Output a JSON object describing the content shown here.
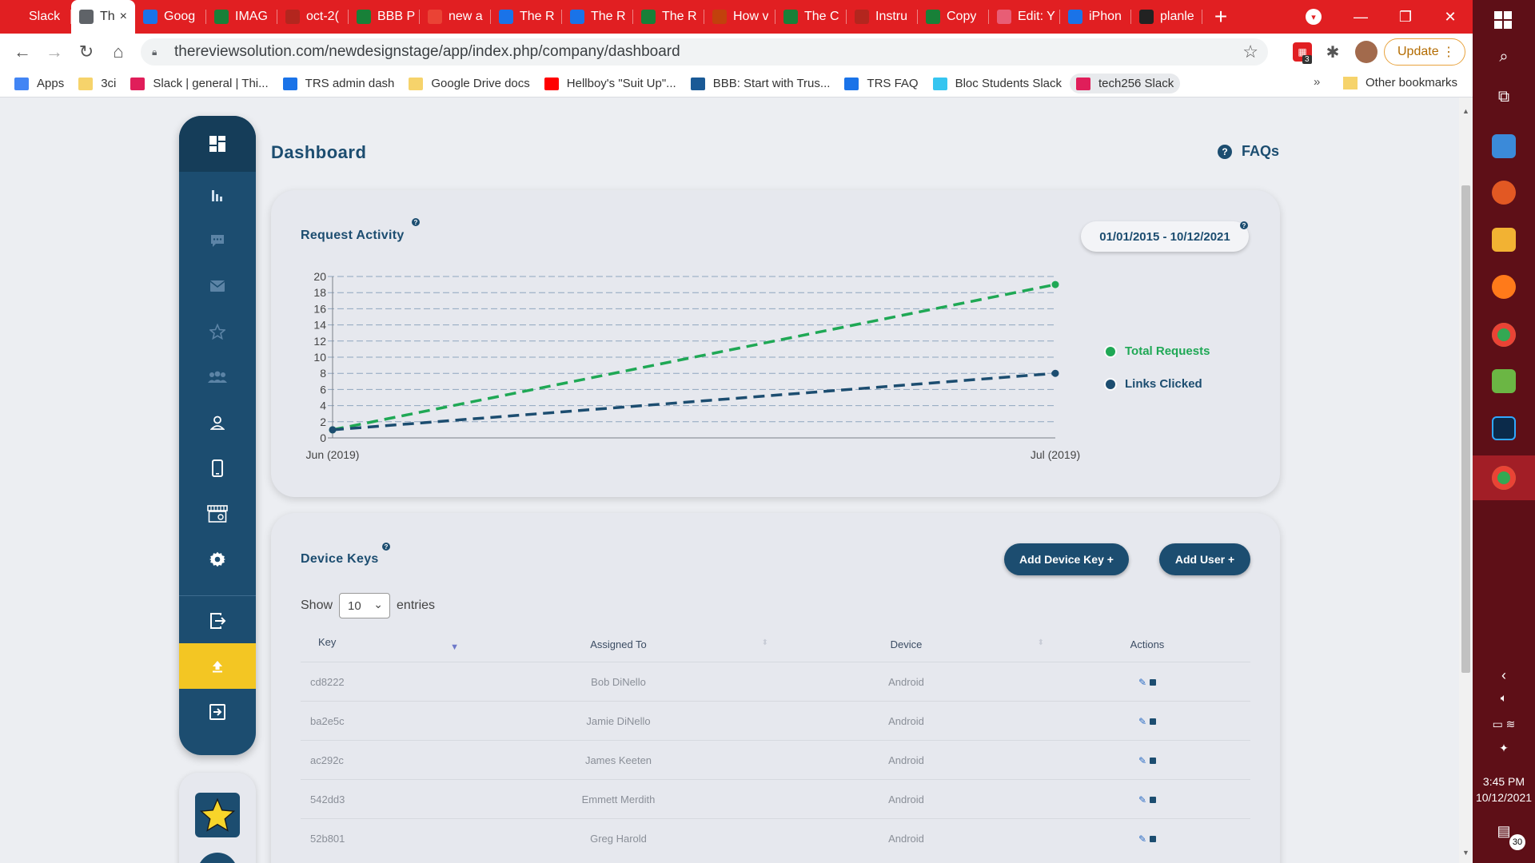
{
  "browser": {
    "tabs": [
      {
        "label": "Slack",
        "icon_color": "#e11f22",
        "icon_name": "slack-icon"
      },
      {
        "label": "Th",
        "icon_color": "#5f6368",
        "icon_name": "globe-icon",
        "active": true
      },
      {
        "label": "Goog",
        "icon_color": "#1a73e8",
        "icon_name": "sel-icon"
      },
      {
        "label": "IMAG",
        "icon_color": "#188038",
        "icon_name": "sheets-icon"
      },
      {
        "label": "oct-2(",
        "icon_color": "#b3261e",
        "icon_name": "web-icon"
      },
      {
        "label": "BBB P",
        "icon_color": "#188038",
        "icon_name": "sheets-icon"
      },
      {
        "label": "new a",
        "icon_color": "#ea4335",
        "icon_name": "gmail-icon"
      },
      {
        "label": "The R",
        "icon_color": "#1a73e8",
        "icon_name": "calendar-icon"
      },
      {
        "label": "The R",
        "icon_color": "#1a73e8",
        "icon_name": "web-icon"
      },
      {
        "label": "The R",
        "icon_color": "#188038",
        "icon_name": "drive-icon"
      },
      {
        "label": "How v",
        "icon_color": "#c2410c",
        "icon_name": "web-icon"
      },
      {
        "label": "The C",
        "icon_color": "#188038",
        "icon_name": "sheets-icon"
      },
      {
        "label": "Instru",
        "icon_color": "#b3261e",
        "icon_name": "web-icon"
      },
      {
        "label": "Copy",
        "icon_color": "#188038",
        "icon_name": "sheets-icon"
      },
      {
        "label": "Edit: Y",
        "icon_color": "#e85d75",
        "icon_name": "s-icon"
      },
      {
        "label": "iPhon",
        "icon_color": "#1a73e8",
        "icon_name": "web-icon"
      },
      {
        "label": "planle",
        "icon_color": "#222222",
        "icon_name": "web-icon"
      }
    ],
    "tab_close": "×",
    "new_tab": "+",
    "window_controls": {
      "minimize": "—",
      "restore": "❐",
      "close": "✕"
    },
    "url": "thereviewsolution.com/newdesignstage/app/index.php/company/dashboard",
    "update_label": "Update",
    "extension_badge": "3",
    "bookmarks": [
      {
        "label": "Apps",
        "icon_color": "#4285f4"
      },
      {
        "label": "3ci",
        "icon_color": "#f6d36b"
      },
      {
        "label": "Slack | general | Thi...",
        "icon_color": "#e01e5a"
      },
      {
        "label": "TRS admin dash",
        "icon_color": "#1a73e8"
      },
      {
        "label": "Google Drive docs",
        "icon_color": "#f6d36b"
      },
      {
        "label": "Hellboy's \"Suit Up\"...",
        "icon_color": "#ff0000"
      },
      {
        "label": "BBB: Start with Trus...",
        "icon_color": "#1a5a96"
      },
      {
        "label": "TRS FAQ",
        "icon_color": "#1a73e8"
      },
      {
        "label": "Bloc Students Slack",
        "icon_color": "#36c5f0"
      },
      {
        "label": "tech256 Slack",
        "icon_color": "#e01e5a",
        "active": true
      }
    ],
    "bookmarks_more": "»",
    "other_bookmarks": "Other bookmarks"
  },
  "page": {
    "title": "Dashboard",
    "faqs_label": "FAQs"
  },
  "request_activity": {
    "title": "Request Activity",
    "date_range": "01/01/2015 - 10/12/2021",
    "legend": [
      {
        "label": "Total Requests",
        "color": "#1fa855"
      },
      {
        "label": "Links Clicked",
        "color": "#1c4d70"
      }
    ]
  },
  "chart_data": {
    "type": "line",
    "title": "Request Activity",
    "x": [
      "Jun (2019)",
      "Jul (2019)"
    ],
    "series": [
      {
        "name": "Total Requests",
        "values": [
          1,
          19
        ],
        "color": "#1fa855",
        "style": "dashed"
      },
      {
        "name": "Links Clicked",
        "values": [
          1,
          8
        ],
        "color": "#1c4d70",
        "style": "dashed"
      }
    ],
    "ylim": [
      0,
      20
    ],
    "yticks": [
      0,
      2,
      4,
      6,
      8,
      10,
      12,
      14,
      16,
      18,
      20
    ],
    "grid": true,
    "legend_position": "right"
  },
  "device_keys": {
    "title": "Device Keys",
    "add_device_key_label": "Add Device Key +",
    "add_user_label": "Add User +",
    "show_label": "Show",
    "entries_label": "entries",
    "page_size": "10",
    "columns": [
      "Key",
      "Assigned To",
      "Device",
      "Actions"
    ],
    "rows": [
      {
        "key": "cd8222",
        "assigned_to": "Bob DiNello",
        "device": "Android"
      },
      {
        "key": "ba2e5c",
        "assigned_to": "Jamie DiNello",
        "device": "Android"
      },
      {
        "key": "ac292c",
        "assigned_to": "James Keeten",
        "device": "Android"
      },
      {
        "key": "542dd3",
        "assigned_to": "Emmett Merdith",
        "device": "Android"
      },
      {
        "key": "52b801",
        "assigned_to": "Greg Harold",
        "device": "Android"
      }
    ]
  },
  "taskbar": {
    "time": "3:45 PM",
    "date": "10/12/2021",
    "notification_count": "30"
  }
}
